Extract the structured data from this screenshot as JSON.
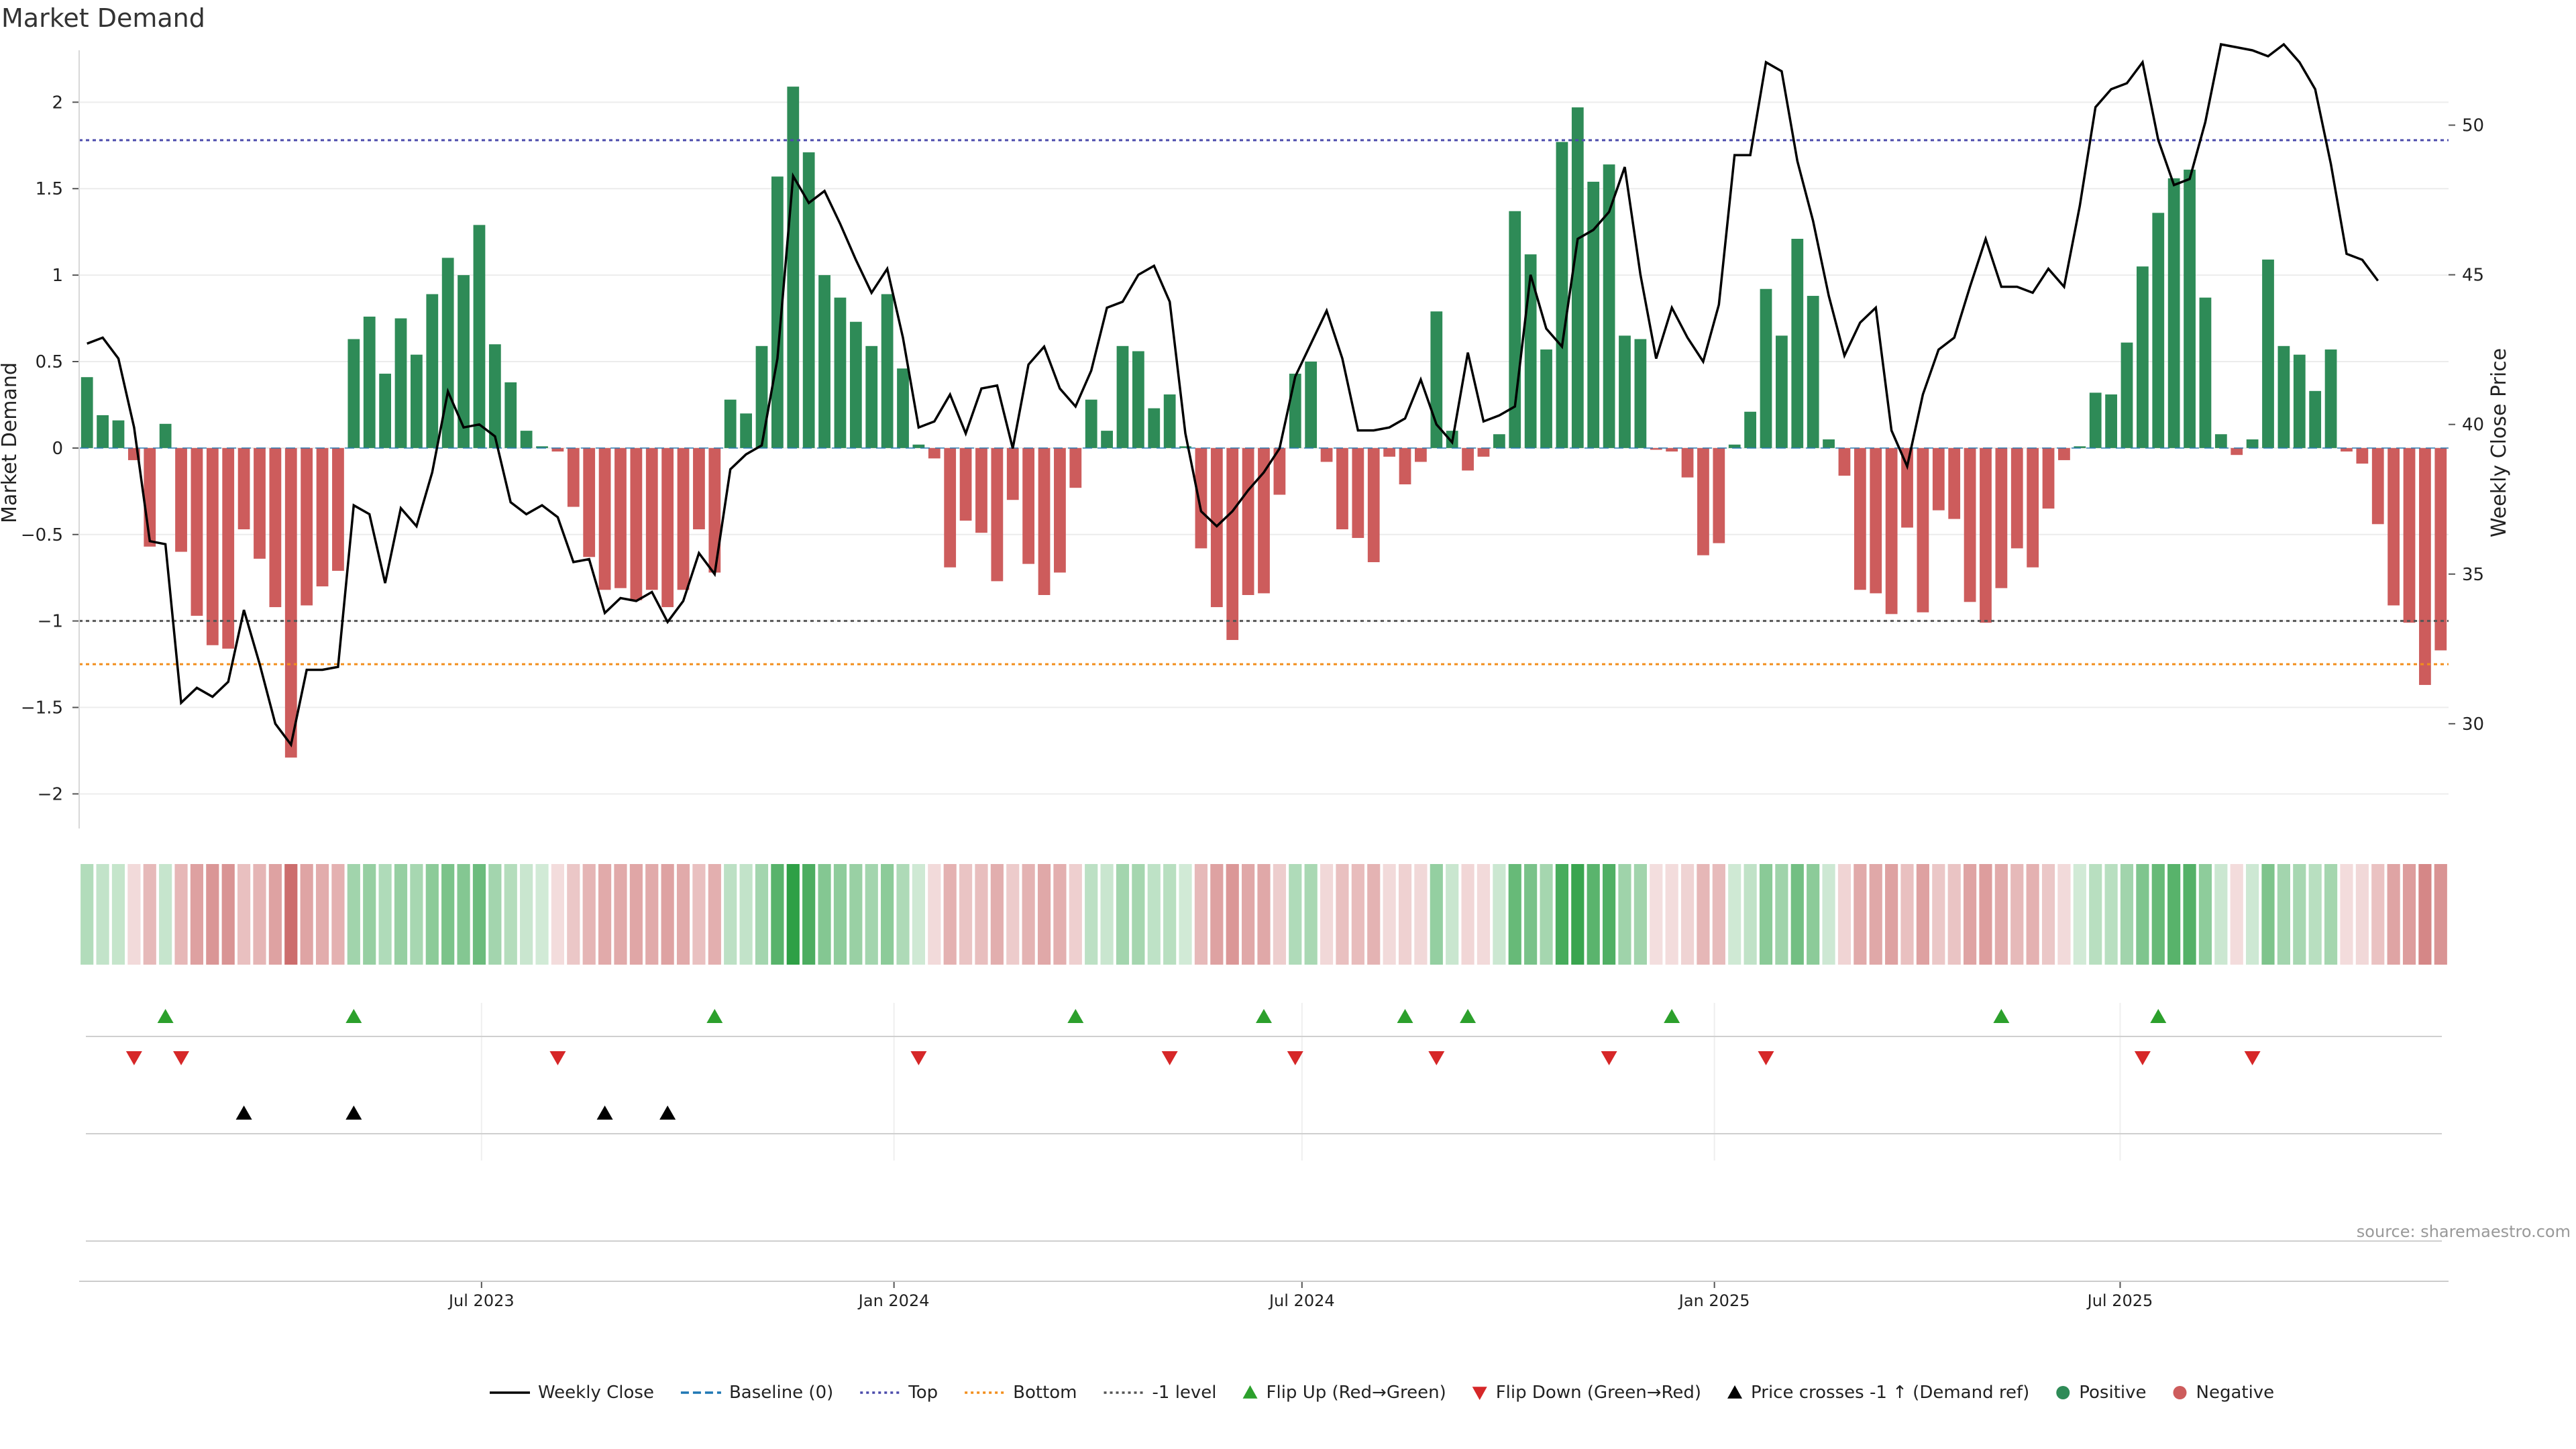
{
  "title": "Market Demand",
  "source": "source: sharemaestro.com",
  "colors": {
    "positive": "#2e8b57",
    "negative": "#cd5c5c",
    "price": "#000000",
    "top": "#4b4bab",
    "bottom": "#f28e1c",
    "minus_one": "#555555",
    "flip_up": "#2ca02c",
    "flip_down": "#d62728",
    "cross": "#000000"
  },
  "legend": [
    {
      "label": "Weekly Close",
      "kind": "line",
      "color": "#000000"
    },
    {
      "label": "Baseline (0)",
      "kind": "dashed",
      "color": "#1f77b4"
    },
    {
      "label": "Top",
      "kind": "dotted",
      "color": "#4b4bab"
    },
    {
      "label": "Bottom",
      "kind": "dotted",
      "color": "#f28e1c"
    },
    {
      "label": "-1 level",
      "kind": "dotted",
      "color": "#555555"
    },
    {
      "label": "Flip Up (Red→Green)",
      "kind": "triup",
      "color": "#2ca02c"
    },
    {
      "label": "Flip Down (Green→Red)",
      "kind": "tridown",
      "color": "#d62728"
    },
    {
      "label": "Price crosses -1 ↑ (Demand ref)",
      "kind": "triup",
      "color": "#000000"
    },
    {
      "label": "Positive",
      "kind": "dot",
      "color": "#2e8b57"
    },
    {
      "label": "Negative",
      "kind": "dot",
      "color": "#cd5c5c"
    }
  ],
  "chart_data": {
    "type": "bar",
    "x_start": "2023-01-06",
    "x_step_days": 7,
    "x_ticks": [
      "Jul 2023",
      "Jan 2024",
      "Jul 2024",
      "Jan 2025",
      "Jul 2025"
    ],
    "y_left_label": "Market Demand",
    "y_left_ticks": [
      2,
      1.5,
      1,
      0.5,
      0,
      -0.5,
      -1,
      -1.5,
      -2
    ],
    "y_left_tick_labels": [
      "2",
      "1.5",
      "1",
      "0.5",
      "0",
      "−0.5",
      "−1",
      "−1.5",
      "−2"
    ],
    "y_left_lim": [
      -2.2,
      2.3
    ],
    "y_right_label": "Weekly Close Price",
    "y_right_ticks": [
      50,
      45,
      40,
      35,
      30
    ],
    "y_right_lim": [
      26.5,
      52.5
    ],
    "levels": {
      "top": 1.78,
      "bottom": -1.25,
      "minus_one": -1.0
    },
    "series": [
      {
        "name": "Market Demand",
        "values": [
          0.41,
          0.19,
          0.16,
          -0.07,
          -0.57,
          0.14,
          -0.6,
          -0.97,
          -1.14,
          -1.16,
          -0.47,
          -0.64,
          -0.92,
          -1.79,
          -0.91,
          -0.8,
          -0.71,
          0.63,
          0.76,
          0.43,
          0.75,
          0.54,
          0.89,
          1.1,
          1.0,
          1.29,
          0.6,
          0.38,
          0.1,
          0.01,
          -0.02,
          -0.34,
          -0.63,
          -0.82,
          -0.81,
          -0.88,
          -0.82,
          -0.92,
          -0.82,
          -0.47,
          -0.72,
          0.28,
          0.2,
          0.59,
          1.57,
          2.09,
          1.71,
          1.0,
          0.87,
          0.73,
          0.59,
          0.89,
          0.46,
          0.02,
          -0.06,
          -0.69,
          -0.42,
          -0.49,
          -0.77,
          -0.3,
          -0.67,
          -0.85,
          -0.72,
          -0.23,
          0.28,
          0.1,
          0.59,
          0.56,
          0.23,
          0.31,
          0.01,
          -0.58,
          -0.92,
          -1.11,
          -0.85,
          -0.84,
          -0.27,
          0.43,
          0.5,
          -0.08,
          -0.47,
          -0.52,
          -0.66,
          -0.05,
          -0.21,
          -0.08,
          0.79,
          0.1,
          -0.13,
          -0.05,
          0.08,
          1.37,
          1.12,
          0.57,
          1.77,
          1.97,
          1.54,
          1.64,
          0.65,
          0.63,
          -0.01,
          -0.02,
          -0.17,
          -0.62,
          -0.55,
          0.02,
          0.21,
          0.92,
          0.65,
          1.21,
          0.88,
          0.05,
          -0.16,
          -0.82,
          -0.84,
          -0.96,
          -0.46,
          -0.95,
          -0.36,
          -0.41,
          -0.89,
          -1.01,
          -0.81,
          -0.58,
          -0.69,
          -0.35,
          -0.07,
          0.01,
          0.32,
          0.31,
          0.61,
          1.05,
          1.36,
          1.56,
          1.61,
          0.87,
          0.08,
          -0.04,
          0.05,
          1.09,
          0.59,
          0.54,
          0.33,
          0.57,
          -0.02,
          -0.09,
          -0.44,
          -0.91,
          -1.01,
          -1.37,
          -1.17
        ]
      },
      {
        "name": "Weekly Close",
        "values": [
          42.7,
          42.9,
          42.2,
          39.9,
          36.1,
          36.0,
          30.7,
          31.2,
          30.9,
          31.4,
          33.8,
          32.0,
          30.0,
          29.3,
          31.8,
          31.8,
          31.9,
          37.3,
          37.0,
          34.7,
          37.2,
          36.6,
          38.4,
          41.1,
          39.9,
          40.0,
          39.6,
          37.4,
          37.0,
          37.3,
          36.9,
          35.4,
          35.5,
          33.7,
          34.2,
          34.1,
          34.4,
          33.4,
          34.1,
          35.7,
          35.0,
          38.5,
          39.0,
          39.3,
          42.2,
          48.3,
          47.4,
          47.8,
          46.7,
          45.5,
          44.4,
          45.2,
          42.9,
          39.9,
          40.1,
          41.0,
          39.7,
          41.2,
          41.3,
          39.2,
          42.0,
          42.6,
          41.2,
          40.6,
          41.8,
          43.9,
          44.1,
          45.0,
          45.3,
          44.1,
          39.7,
          37.1,
          36.6,
          37.1,
          37.8,
          38.4,
          39.2,
          41.6,
          42.7,
          43.8,
          42.2,
          39.8,
          39.8,
          39.9,
          40.2,
          41.5,
          40.0,
          39.4,
          42.4,
          40.1,
          40.3,
          40.6,
          45.0,
          43.2,
          42.6,
          46.2,
          46.5,
          47.1,
          48.6,
          45.0,
          42.2,
          43.9,
          42.9,
          42.1,
          44.0,
          49.0,
          49.0,
          52.1,
          51.8,
          48.8,
          46.8,
          44.3,
          42.3,
          43.4,
          43.9,
          39.8,
          38.6,
          41.0,
          42.5,
          42.9,
          44.6,
          46.2,
          44.6,
          44.6,
          44.4,
          45.2,
          44.6,
          47.3,
          50.6,
          51.2,
          51.4,
          52.1,
          49.5,
          48.0,
          48.2,
          50.1,
          52.7,
          52.6,
          52.5,
          52.3,
          52.7,
          52.1,
          51.2,
          48.7,
          45.7,
          45.5,
          44.8
        ]
      }
    ],
    "flip_up_weeks": [
      5,
      17,
      40,
      63,
      75,
      84,
      88,
      101,
      122,
      132
    ],
    "flip_down_weeks": [
      3,
      6,
      30,
      53,
      69,
      77,
      86,
      97,
      107,
      131,
      138
    ],
    "price_cross_weeks": [
      10,
      17,
      33,
      37
    ]
  }
}
